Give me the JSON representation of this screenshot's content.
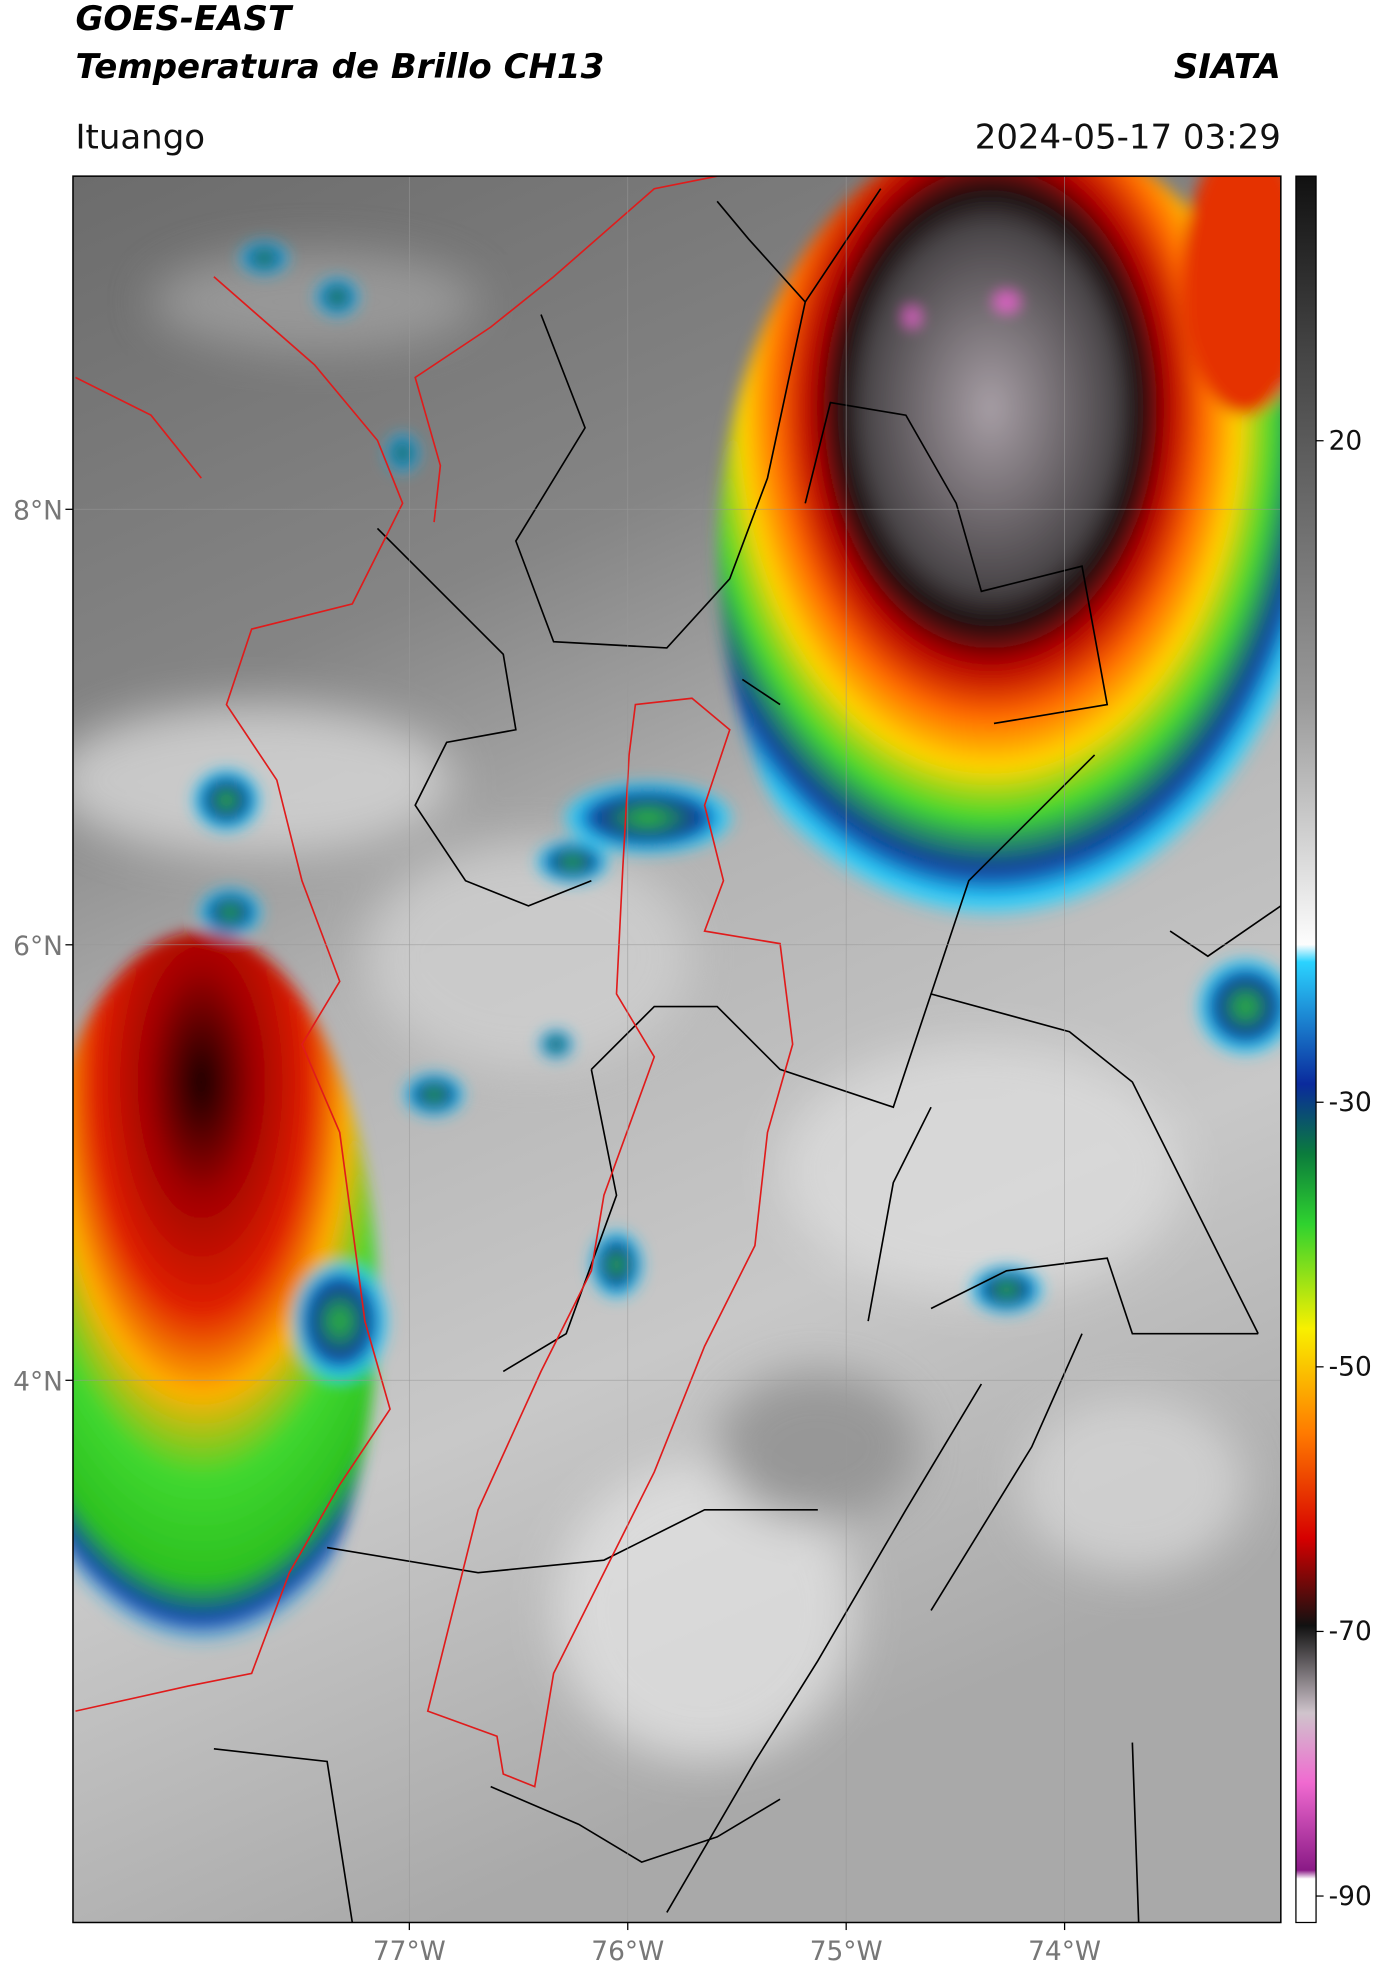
{
  "header": {
    "title": "GOES-EAST",
    "subtitle": "Temperatura de Brillo CH13",
    "source": "SIATA",
    "location": "Ituango",
    "datetime": "2024-05-17 03:29"
  },
  "map": {
    "lonlim": [
      -78.54,
      -73.01
    ],
    "latlim": [
      1.51,
      9.53
    ],
    "lat_ticks": [
      {
        "value": 8,
        "label": "8°N"
      },
      {
        "value": 6,
        "label": "6°N"
      },
      {
        "value": 4,
        "label": "4°N"
      }
    ],
    "lon_ticks": [
      {
        "value": -77,
        "label": "77°W"
      },
      {
        "value": -76,
        "label": "76°W"
      },
      {
        "value": -75,
        "label": "75°W"
      },
      {
        "value": -74,
        "label": "74°W"
      }
    ]
  },
  "colorbar": {
    "lim": [
      -92,
      40
    ],
    "ticks": [
      20,
      -30,
      -50,
      -70,
      -90
    ]
  }
}
